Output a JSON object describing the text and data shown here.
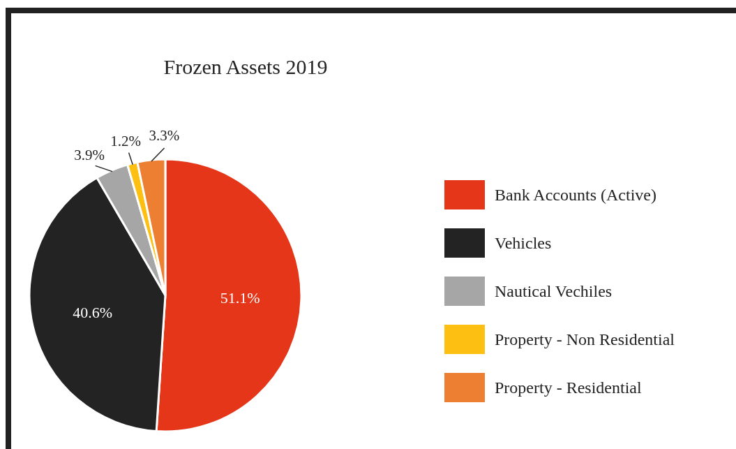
{
  "chart_data": {
    "type": "pie",
    "title": "Frozen Assets 2019",
    "categories": [
      "Bank Accounts (Active)",
      "Vehicles",
      "Nautical Vechiles",
      "Property - Non Residential",
      "Property - Residential"
    ],
    "values": [
      51.1,
      40.6,
      3.9,
      1.2,
      3.3
    ],
    "colors": [
      "#e5361a",
      "#222322",
      "#a6a6a6",
      "#fdbf12",
      "#ec7f32"
    ],
    "value_labels": [
      "51.1%",
      "40.6%",
      "3.9%",
      "1.2%",
      "3.3%"
    ],
    "legend": "right"
  }
}
